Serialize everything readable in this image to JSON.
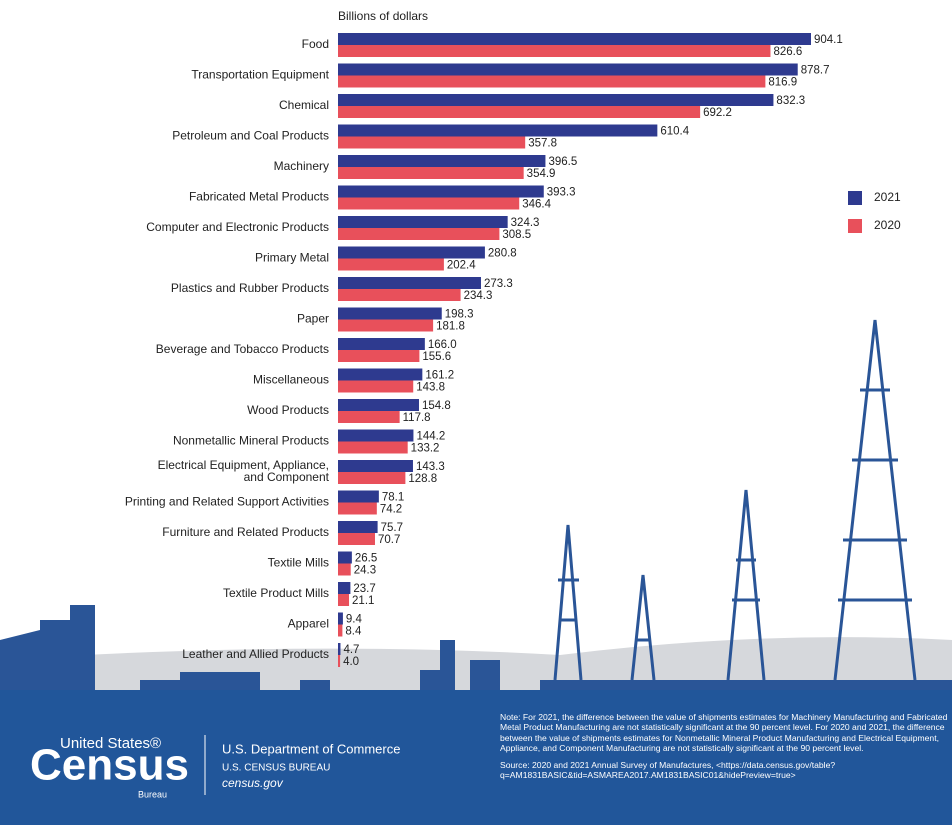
{
  "chart_data": {
    "type": "hbar",
    "axis_label": "Billions of dollars",
    "categories": [
      "Food",
      "Transportation Equipment",
      "Chemical",
      "Petroleum and Coal Products",
      "Machinery",
      "Fabricated Metal Products",
      "Computer and Electronic Products",
      "Primary Metal",
      "Plastics and Rubber Products",
      "Paper",
      "Beverage and Tobacco Products",
      "Miscellaneous",
      "Wood Products",
      "Nonmetallic Mineral Products",
      "Electrical Equipment, Appliance,\nand Component",
      "Printing and Related Support Activities",
      "Furniture and Related Products",
      "Textile Mills",
      "Textile Product Mills",
      "Apparel",
      "Leather and Allied Products"
    ],
    "series": [
      {
        "name": "2021",
        "color": "#2e3a8f",
        "values": [
          904.1,
          878.7,
          832.3,
          610.4,
          396.5,
          393.3,
          324.3,
          280.8,
          273.3,
          198.3,
          166.0,
          161.2,
          154.8,
          144.2,
          143.3,
          78.1,
          75.7,
          26.5,
          23.7,
          9.4,
          4.7
        ],
        "value_labels": [
          "904.1",
          "878.7",
          "832.3",
          "610.4",
          "396.5",
          "393.3",
          "324.3",
          "280.8",
          "273.3",
          "198.3",
          "166.0",
          "161.2",
          "154.8",
          "144.2",
          "143.3",
          "78.1",
          "75.7",
          "26.5",
          "23.7",
          "9.4",
          "4.7"
        ]
      },
      {
        "name": "2020",
        "color": "#e8505b",
        "values": [
          826.6,
          816.9,
          692.2,
          357.8,
          354.9,
          346.4,
          308.5,
          202.4,
          234.3,
          181.8,
          155.6,
          143.8,
          117.8,
          133.2,
          128.8,
          74.2,
          70.7,
          24.3,
          21.1,
          8.4,
          4.0
        ],
        "value_labels": [
          "826.6",
          "816.9",
          "692.2",
          "357.8",
          "354.9",
          "346.4",
          "308.5",
          "202.4",
          "234.3",
          "181.8",
          "155.6",
          "143.8",
          "117.8",
          "133.2",
          "128.8",
          "74.2",
          "70.7",
          "24.3",
          "21.1",
          "8.4",
          "4.0"
        ]
      }
    ]
  },
  "footer": {
    "logo_top": "United States®",
    "logo_main": "Census",
    "logo_bottom": "Bureau",
    "dept": "U.S. Department of Commerce",
    "bureau": "U.S. CENSUS BUREAU",
    "site": "census.gov",
    "note": "Note: For 2021, the difference between the value of shipments estimates for Machinery Manufacturing and Fabricated Metal Product Manufacturing are not statistically significant at the 90 percent level. For 2020 and 2021, the difference between the value of shipments estimates for Nonmetallic Mineral Product Manufacturing and Electrical Equipment, Appliance, and Component Manufacturing are not statistically significant at the 90 percent level.",
    "source": "Source: 2020 and 2021 Annual Survey of Manufactures, <https://data.census.gov/table?q=AM1831BASIC&tid=ASMAREA2017.AM1831BASIC01&hidePreview=true>"
  }
}
